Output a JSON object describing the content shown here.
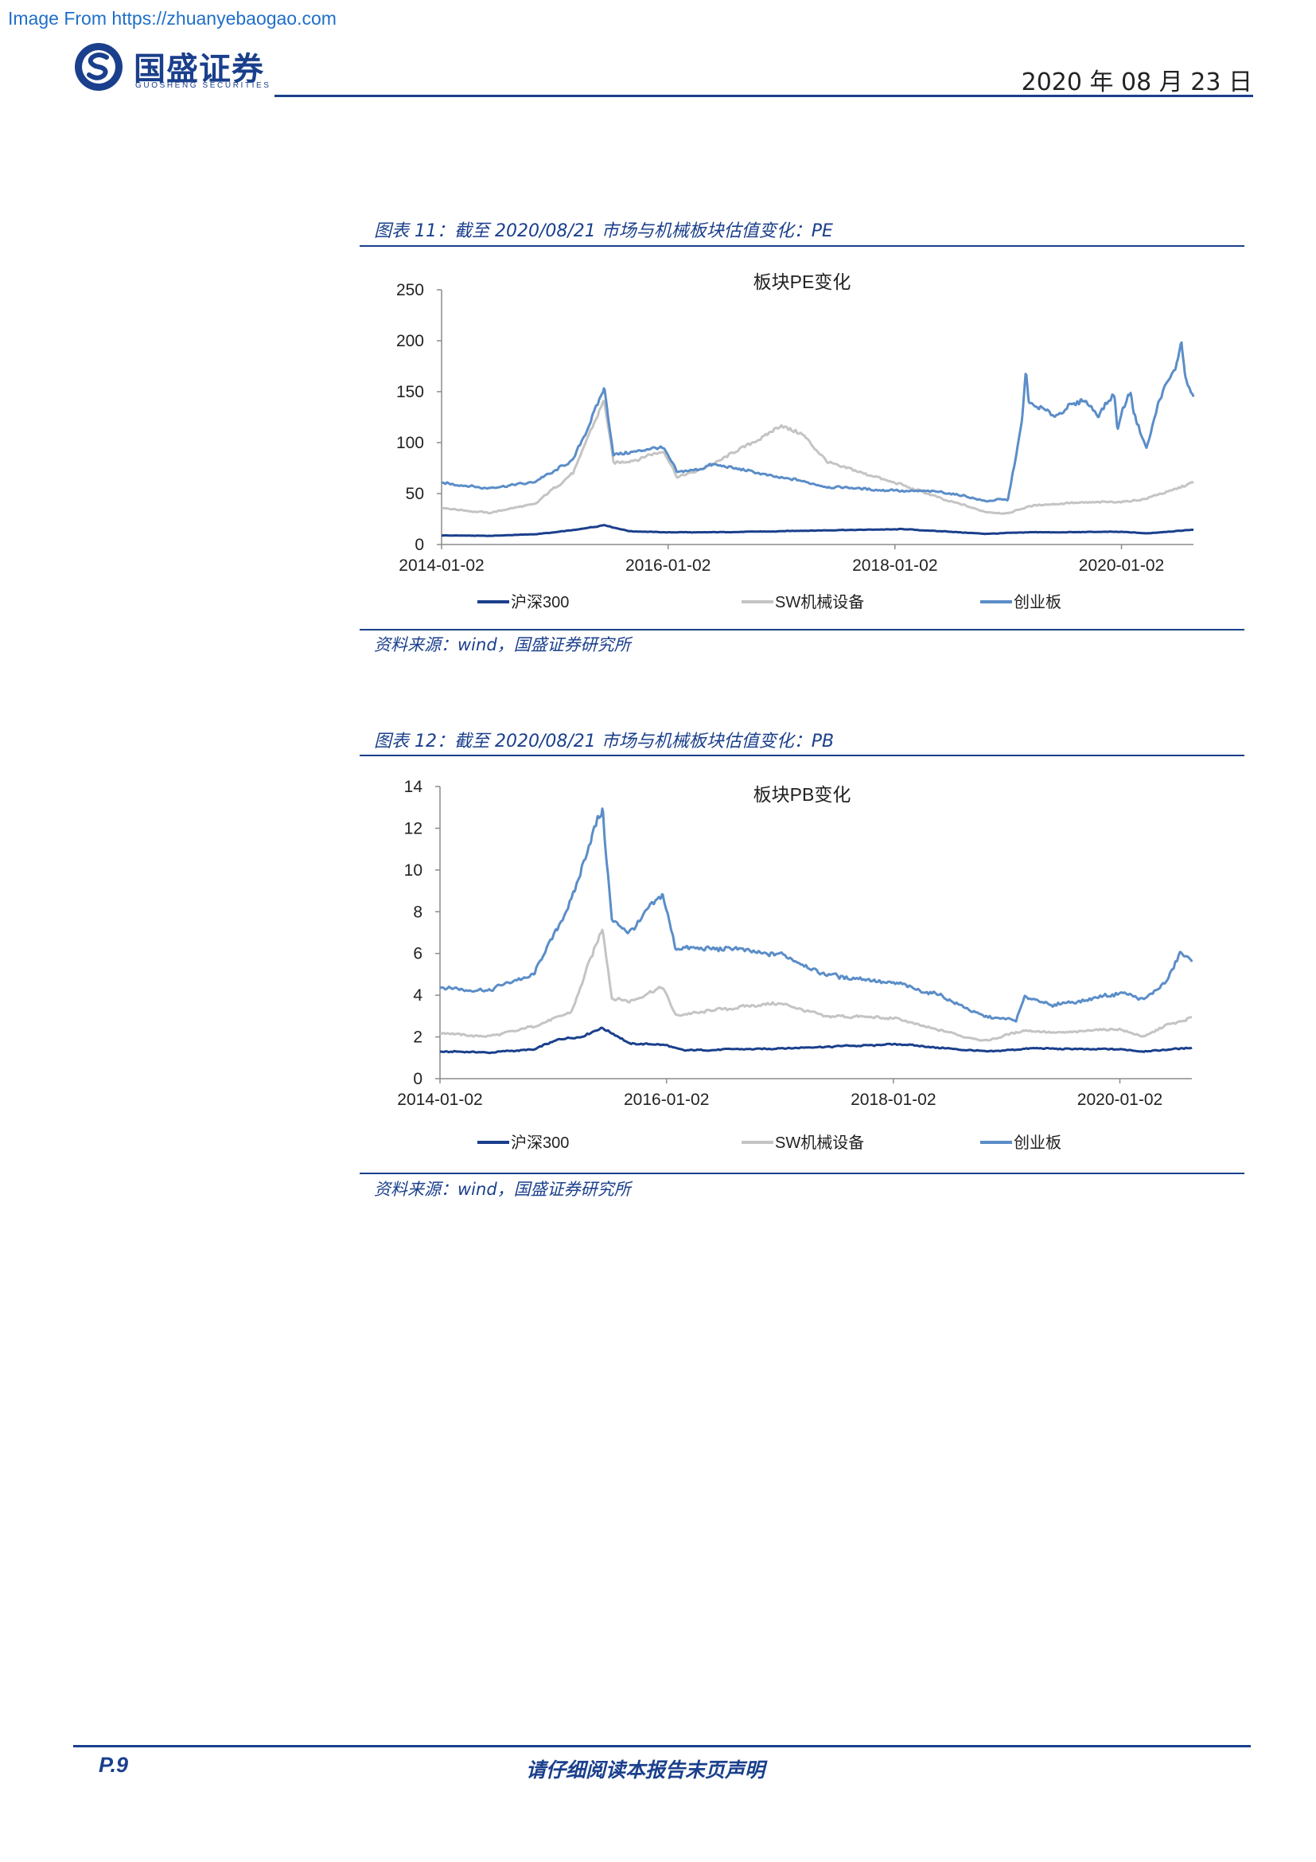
{
  "source_note": "Image From https://zhuanyebaogao.com",
  "logo": {
    "cn": "国盛证券",
    "en": "GUOSHENG SECURITIES"
  },
  "header": {
    "date": "2020 年 08 月 23 日"
  },
  "colors": {
    "hs300": "#1a3f8c",
    "sw_machinery": "#c4c4c4",
    "chinext": "#5b8dc8",
    "brand": "#1a3f8c"
  },
  "figures": [
    {
      "title": "图表 11：截至 2020/08/21 市场与机械板块估值变化：PE",
      "source": "资料来源：wind，国盛证券研究所"
    },
    {
      "title": "图表 12：截至 2020/08/21 市场与机械板块估值变化：PB",
      "source": "资料来源：wind，国盛证券研究所"
    }
  ],
  "chart_data": [
    {
      "type": "line",
      "title": "板块PE变化",
      "xlabel": "",
      "ylabel": "",
      "x_ticks": [
        "2014-01-02",
        "2016-01-02",
        "2018-01-02",
        "2020-01-02"
      ],
      "x_range": [
        "2014-01-02",
        "2020-08-21"
      ],
      "y_ticks": [
        0,
        50,
        100,
        150,
        200,
        250
      ],
      "ylim": [
        0,
        250
      ],
      "legend_position": "bottom",
      "series": [
        {
          "name": "沪深300",
          "color": "#1a3f8c",
          "points": [
            [
              "2014-01-02",
              9
            ],
            [
              "2014-06-01",
              8.5
            ],
            [
              "2014-11-01",
              10
            ],
            [
              "2015-03-01",
              14
            ],
            [
              "2015-06-10",
              19
            ],
            [
              "2015-09-01",
              13
            ],
            [
              "2016-01-02",
              12
            ],
            [
              "2016-06-01",
              12
            ],
            [
              "2017-01-01",
              13
            ],
            [
              "2017-06-01",
              14
            ],
            [
              "2018-01-25",
              15
            ],
            [
              "2018-06-01",
              13
            ],
            [
              "2018-10-20",
              10.5
            ],
            [
              "2019-03-01",
              12
            ],
            [
              "2019-06-01",
              12
            ],
            [
              "2020-01-02",
              12.5
            ],
            [
              "2020-03-20",
              11
            ],
            [
              "2020-06-01",
              12.5
            ],
            [
              "2020-08-21",
              14.5
            ]
          ]
        },
        {
          "name": "SW机械设备",
          "color": "#c4c4c4",
          "points": [
            [
              "2014-01-02",
              36
            ],
            [
              "2014-06-01",
              31
            ],
            [
              "2014-11-01",
              40
            ],
            [
              "2015-03-01",
              70
            ],
            [
              "2015-06-10",
              142
            ],
            [
              "2015-07-10",
              80
            ],
            [
              "2015-09-01",
              82
            ],
            [
              "2015-12-20",
              92
            ],
            [
              "2016-02-01",
              65
            ],
            [
              "2016-06-01",
              80
            ],
            [
              "2016-10-01",
              100
            ],
            [
              "2017-01-01",
              117
            ],
            [
              "2017-03-01",
              110
            ],
            [
              "2017-06-01",
              80
            ],
            [
              "2017-12-01",
              64
            ],
            [
              "2018-06-01",
              45
            ],
            [
              "2018-10-20",
              32
            ],
            [
              "2019-01-01",
              30
            ],
            [
              "2019-03-01",
              37
            ],
            [
              "2019-06-01",
              40
            ],
            [
              "2020-01-02",
              42
            ],
            [
              "2020-03-20",
              45
            ],
            [
              "2020-06-01",
              52
            ],
            [
              "2020-08-21",
              62
            ]
          ]
        },
        {
          "name": "创业板",
          "color": "#5b8dc8",
          "points": [
            [
              "2014-01-02",
              60
            ],
            [
              "2014-06-01",
              55
            ],
            [
              "2014-11-01",
              62
            ],
            [
              "2015-03-01",
              82
            ],
            [
              "2015-06-10",
              152
            ],
            [
              "2015-07-10",
              88
            ],
            [
              "2015-09-01",
              90
            ],
            [
              "2015-12-20",
              95
            ],
            [
              "2016-02-01",
              70
            ],
            [
              "2016-06-01",
              78
            ],
            [
              "2017-01-01",
              66
            ],
            [
              "2017-06-01",
              57
            ],
            [
              "2018-01-01",
              53
            ],
            [
              "2018-06-01",
              52
            ],
            [
              "2018-10-20",
              43
            ],
            [
              "2019-01-01",
              44
            ],
            [
              "2019-02-15",
              120
            ],
            [
              "2019-02-28",
              170
            ],
            [
              "2019-03-10",
              140
            ],
            [
              "2019-06-01",
              127
            ],
            [
              "2019-09-01",
              143
            ],
            [
              "2019-10-20",
              125
            ],
            [
              "2019-12-10",
              150
            ],
            [
              "2019-12-20",
              110
            ],
            [
              "2020-01-02",
              128
            ],
            [
              "2020-02-01",
              150
            ],
            [
              "2020-02-10",
              130
            ],
            [
              "2020-03-23",
              95
            ],
            [
              "2020-05-01",
              140
            ],
            [
              "2020-07-01",
              180
            ],
            [
              "2020-07-13",
              200
            ],
            [
              "2020-07-25",
              162
            ],
            [
              "2020-08-21",
              142
            ]
          ]
        }
      ]
    },
    {
      "type": "line",
      "title": "板块PB变化",
      "xlabel": "",
      "ylabel": "",
      "x_ticks": [
        "2014-01-02",
        "2016-01-02",
        "2018-01-02",
        "2020-01-02"
      ],
      "x_range": [
        "2014-01-02",
        "2020-08-21"
      ],
      "y_ticks": [
        0,
        2,
        4,
        6,
        8,
        10,
        12,
        14
      ],
      "ylim": [
        0,
        14
      ],
      "legend_position": "bottom",
      "series": [
        {
          "name": "沪深300",
          "color": "#1a3f8c",
          "points": [
            [
              "2014-01-02",
              1.3
            ],
            [
              "2014-06-01",
              1.25
            ],
            [
              "2014-11-01",
              1.4
            ],
            [
              "2015-01-20",
              1.9
            ],
            [
              "2015-04-01",
              2.0
            ],
            [
              "2015-06-10",
              2.45
            ],
            [
              "2015-09-01",
              1.7
            ],
            [
              "2016-01-02",
              1.6
            ],
            [
              "2016-03-01",
              1.35
            ],
            [
              "2017-01-01",
              1.45
            ],
            [
              "2018-01-25",
              1.65
            ],
            [
              "2018-10-20",
              1.3
            ],
            [
              "2019-04-01",
              1.45
            ],
            [
              "2020-01-02",
              1.4
            ],
            [
              "2020-03-20",
              1.3
            ],
            [
              "2020-08-21",
              1.5
            ]
          ]
        },
        {
          "name": "SW机械设备",
          "color": "#c4c4c4",
          "points": [
            [
              "2014-01-02",
              2.2
            ],
            [
              "2014-06-01",
              2.0
            ],
            [
              "2014-11-01",
              2.5
            ],
            [
              "2015-03-01",
              3.2
            ],
            [
              "2015-06-10",
              7.3
            ],
            [
              "2015-07-10",
              3.8
            ],
            [
              "2015-09-01",
              3.7
            ],
            [
              "2015-12-20",
              4.4
            ],
            [
              "2016-02-01",
              3.0
            ],
            [
              "2016-06-01",
              3.3
            ],
            [
              "2017-01-01",
              3.6
            ],
            [
              "2017-06-01",
              3.0
            ],
            [
              "2018-01-01",
              2.9
            ],
            [
              "2018-06-01",
              2.3
            ],
            [
              "2018-10-20",
              1.8
            ],
            [
              "2019-03-01",
              2.3
            ],
            [
              "2019-06-01",
              2.2
            ],
            [
              "2020-01-02",
              2.4
            ],
            [
              "2020-03-20",
              2.0
            ],
            [
              "2020-06-01",
              2.6
            ],
            [
              "2020-08-21",
              2.9
            ]
          ]
        },
        {
          "name": "创业板",
          "color": "#5b8dc8",
          "points": [
            [
              "2014-01-02",
              4.4
            ],
            [
              "2014-06-01",
              4.2
            ],
            [
              "2014-11-01",
              5.0
            ],
            [
              "2015-03-01",
              8.5
            ],
            [
              "2015-06-10",
              13.0
            ],
            [
              "2015-07-10",
              7.5
            ],
            [
              "2015-09-01",
              7.0
            ],
            [
              "2015-12-20",
              8.8
            ],
            [
              "2016-02-01",
              6.2
            ],
            [
              "2016-06-01",
              6.3
            ],
            [
              "2017-01-01",
              6.0
            ],
            [
              "2017-06-01",
              5.0
            ],
            [
              "2018-01-01",
              4.6
            ],
            [
              "2018-06-01",
              4.0
            ],
            [
              "2018-10-20",
              3.0
            ],
            [
              "2019-02-01",
              2.8
            ],
            [
              "2019-03-01",
              3.9
            ],
            [
              "2019-06-01",
              3.5
            ],
            [
              "2020-01-02",
              4.1
            ],
            [
              "2020-03-20",
              3.8
            ],
            [
              "2020-06-01",
              4.7
            ],
            [
              "2020-07-13",
              6.0
            ],
            [
              "2020-08-21",
              5.6
            ]
          ]
        }
      ]
    }
  ],
  "footer": {
    "page": "P.9",
    "disclaimer": "请仔细阅读本报告末页声明"
  }
}
